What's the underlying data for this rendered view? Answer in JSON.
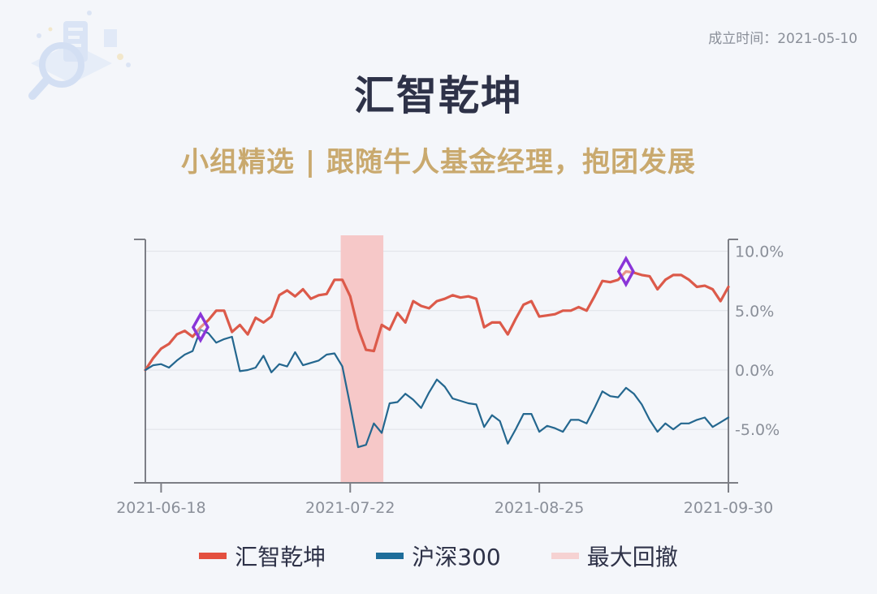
{
  "header": {
    "founded": "成立时间：2021-05-10",
    "title": "汇智乾坤",
    "subtitle": "小组精选 | 跟随牛人基金经理，抱团发展"
  },
  "colors": {
    "fund": "#dc5a4a",
    "index": "#24678f",
    "drawdown": "#f6c8c8",
    "marker": "#8a35d8",
    "title": "#2e3248",
    "subtitle": "#c9a96e"
  },
  "legend": [
    {
      "label": "汇智乾坤",
      "color": "#e4503f"
    },
    {
      "label": "沪深300",
      "color": "#1e6d9a"
    },
    {
      "label": "最大回撤",
      "color": "#f6d2d2"
    }
  ],
  "chart_data": {
    "type": "line",
    "x": [
      "2021-06-16",
      "2021-06-17",
      "2021-06-18",
      "2021-06-21",
      "2021-06-22",
      "2021-06-23",
      "2021-06-24",
      "2021-06-25",
      "2021-06-28",
      "2021-06-29",
      "2021-06-30",
      "2021-07-01",
      "2021-07-02",
      "2021-07-05",
      "2021-07-06",
      "2021-07-07",
      "2021-07-08",
      "2021-07-09",
      "2021-07-12",
      "2021-07-13",
      "2021-07-14",
      "2021-07-15",
      "2021-07-16",
      "2021-07-19",
      "2021-07-20",
      "2021-07-21",
      "2021-07-22",
      "2021-07-23",
      "2021-07-26",
      "2021-07-27",
      "2021-07-28",
      "2021-07-29",
      "2021-07-30",
      "2021-08-02",
      "2021-08-03",
      "2021-08-04",
      "2021-08-05",
      "2021-08-06",
      "2021-08-09",
      "2021-08-10",
      "2021-08-11",
      "2021-08-12",
      "2021-08-13",
      "2021-08-16",
      "2021-08-17",
      "2021-08-18",
      "2021-08-19",
      "2021-08-20",
      "2021-08-23",
      "2021-08-24",
      "2021-08-25",
      "2021-08-26",
      "2021-08-27",
      "2021-08-30",
      "2021-08-31",
      "2021-09-01",
      "2021-09-02",
      "2021-09-03",
      "2021-09-06",
      "2021-09-07",
      "2021-09-08",
      "2021-09-09",
      "2021-09-10",
      "2021-09-13",
      "2021-09-14",
      "2021-09-15",
      "2021-09-16",
      "2021-09-17",
      "2021-09-22",
      "2021-09-23",
      "2021-09-24",
      "2021-09-27",
      "2021-09-28",
      "2021-09-29",
      "2021-09-30"
    ],
    "x_ticks": [
      "2021-06-18",
      "2021-07-22",
      "2021-08-25",
      "2021-09-30"
    ],
    "series": [
      {
        "name": "汇智乾坤",
        "values": [
          0.0,
          1.0,
          1.8,
          2.2,
          3.0,
          3.3,
          2.8,
          3.6,
          4.2,
          5.0,
          5.0,
          3.2,
          3.8,
          3.0,
          4.4,
          4.0,
          4.5,
          6.3,
          6.7,
          6.2,
          6.8,
          6.0,
          6.3,
          6.4,
          7.6,
          7.6,
          6.2,
          3.5,
          1.7,
          1.6,
          3.8,
          3.4,
          4.8,
          4.0,
          5.8,
          5.4,
          5.2,
          5.8,
          6.0,
          6.3,
          6.1,
          6.2,
          6.0,
          3.6,
          4.0,
          4.0,
          3.0,
          4.3,
          5.5,
          5.8,
          4.5,
          4.6,
          4.7,
          5.0,
          5.0,
          5.3,
          5.0,
          6.2,
          7.5,
          7.4,
          7.6,
          8.3,
          8.2,
          8.0,
          7.9,
          6.8,
          7.6,
          8.0,
          8.0,
          7.6,
          7.0,
          7.1,
          6.8,
          5.8,
          7.0
        ]
      },
      {
        "name": "沪深300",
        "values": [
          0.0,
          0.4,
          0.5,
          0.2,
          0.8,
          1.3,
          1.6,
          3.4,
          3.1,
          2.3,
          2.6,
          2.8,
          -0.1,
          0.0,
          0.2,
          1.2,
          -0.2,
          0.5,
          0.3,
          1.5,
          0.4,
          0.6,
          0.8,
          1.3,
          1.4,
          0.3,
          -3.0,
          -6.5,
          -6.3,
          -4.5,
          -5.3,
          -2.8,
          -2.7,
          -2.0,
          -2.5,
          -3.2,
          -1.9,
          -0.8,
          -1.4,
          -2.4,
          -2.6,
          -2.8,
          -2.9,
          -4.8,
          -3.8,
          -4.3,
          -6.2,
          -5.0,
          -3.7,
          -3.7,
          -5.2,
          -4.7,
          -4.9,
          -5.2,
          -4.2,
          -4.2,
          -4.5,
          -3.2,
          -1.8,
          -2.2,
          -2.3,
          -1.5,
          -2.0,
          -2.9,
          -4.2,
          -5.2,
          -4.5,
          -5.0,
          -4.5,
          -4.5,
          -4.2,
          -4.0,
          -4.8,
          -4.4,
          -4.0
        ]
      }
    ],
    "drawdown_period": [
      "2021-07-21",
      "2021-07-28"
    ],
    "markers": [
      {
        "x": "2021-06-25",
        "series": "汇智乾坤"
      },
      {
        "x": "2021-09-09",
        "series": "汇智乾坤"
      }
    ],
    "y_ticks": [
      "10.0%",
      "5.0%",
      "0.0%",
      "-5.0%"
    ],
    "ylim": [
      -9.5,
      11.0
    ],
    "y_axis_side": "right",
    "grid": true,
    "legend_position": "bottom"
  }
}
